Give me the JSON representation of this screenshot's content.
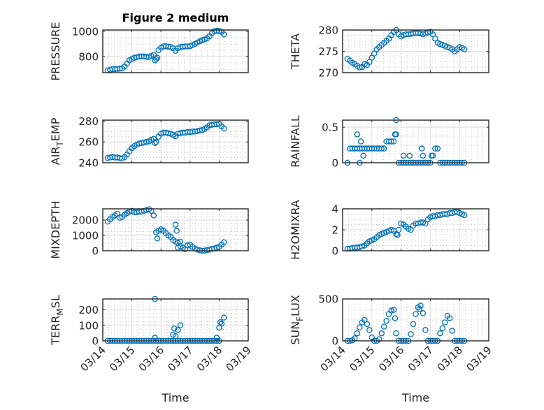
{
  "chart_data": {
    "type": "scatter",
    "figure_title": "Figure 2 medium",
    "xlabel": "Time",
    "xticklabels": [
      "03/14",
      "03/15",
      "03/16",
      "03/17",
      "03/18",
      "03/19"
    ],
    "xlim_days_since_0314": [
      0,
      5
    ],
    "marker": "open-circle",
    "color": "#0072BD",
    "grid": "on-with-minor",
    "x_hours_since_0314": [
      4,
      6,
      8,
      10,
      12,
      14,
      16,
      18,
      20,
      22,
      24,
      26,
      28,
      30,
      32,
      34,
      36,
      38,
      40,
      42,
      44,
      46,
      48,
      50,
      52,
      54,
      56,
      58,
      60,
      62,
      64,
      66,
      68,
      70,
      72,
      74,
      76,
      78,
      80,
      82,
      84,
      86,
      88,
      90,
      92,
      94,
      96,
      98,
      100
    ],
    "subplots": [
      {
        "name": "PRESSURE",
        "ylabel": {
          "base": "PRESSURE",
          "sub": "",
          "rest": ""
        },
        "ylim": [
          672,
          1010
        ],
        "yticks": [
          800,
          1000
        ],
        "y": [
          690,
          695,
          700,
          700,
          702,
          703,
          705,
          720,
          745,
          770,
          780,
          790,
          795,
          800,
          800,
          800,
          798,
          795,
          805,
          815,
          780,
          850,
          870,
          880,
          882,
          878,
          875,
          865,
          845,
          865,
          875,
          878,
          880,
          880,
          882,
          890,
          900,
          910,
          920,
          930,
          935,
          945,
          960,
          985,
          1000,
          1003,
          1003,
          995,
          975
        ],
        "outliers": [
          [
            43,
            770
          ],
          [
            45,
            790
          ]
        ]
      },
      {
        "name": "THETA",
        "ylabel": {
          "base": "THETA",
          "sub": "",
          "rest": ""
        },
        "ylim": [
          270,
          280
        ],
        "yticks": [
          270,
          275,
          280
        ],
        "y": [
          273.2,
          272.8,
          272.3,
          272,
          271.6,
          271.2,
          271.3,
          272,
          271.8,
          272.5,
          273.5,
          274.5,
          275.5,
          276,
          276.5,
          277,
          277.5,
          278,
          278.8,
          279.5,
          280,
          279,
          278.5,
          278.8,
          279,
          279,
          279.1,
          279.2,
          279.3,
          279.3,
          279.2,
          279,
          279.2,
          279.4,
          279.6,
          279,
          278,
          277,
          276.7,
          276.5,
          276.3,
          276,
          275.8,
          275.5,
          275,
          275.5,
          276,
          275.8,
          275.5
        ],
        "outliers": []
      },
      {
        "name": "AIR_TEMP",
        "ylabel": {
          "base": "AIR",
          "sub": "T",
          "rest": "EMP"
        },
        "ylim": [
          240,
          281
        ],
        "yticks": [
          240,
          260,
          280
        ],
        "y": [
          244.5,
          245,
          245.5,
          245,
          245,
          244.5,
          244,
          245.5,
          248,
          251,
          254,
          256,
          257.5,
          258.5,
          259,
          259.5,
          260,
          260.5,
          262,
          263,
          260,
          265,
          268,
          269,
          269,
          268.5,
          268,
          267,
          265.5,
          268,
          268.5,
          269,
          269,
          269.5,
          269.5,
          270,
          270,
          270.5,
          271,
          271.5,
          272.5,
          274,
          276,
          276.5,
          277,
          277,
          277.5,
          275,
          273
        ],
        "outliers": [
          [
            43,
            259
          ]
        ]
      },
      {
        "name": "RAINFALL",
        "ylabel": {
          "base": "RAINFALL",
          "sub": "",
          "rest": ""
        },
        "ylim": [
          0,
          0.6
        ],
        "yticks": [
          0,
          0.5
        ],
        "y": [
          0,
          0.2,
          0.2,
          0.2,
          0.2,
          0.2,
          0.2,
          0.2,
          0.2,
          0.2,
          0.2,
          0.2,
          0.2,
          0.2,
          0.2,
          0.2,
          0.3,
          0.3,
          0.3,
          0.3,
          0.4,
          0,
          0,
          0,
          0,
          0,
          0,
          0,
          0,
          0,
          0,
          0,
          0,
          0,
          0,
          0.1,
          0.2,
          0.2,
          0,
          0,
          0,
          0,
          0,
          0,
          0,
          0,
          0,
          0,
          0
        ],
        "outliers": [
          [
            12,
            0.4
          ],
          [
            14,
            0
          ],
          [
            15,
            0.3
          ],
          [
            17,
            0.1
          ],
          [
            43,
            0.4
          ],
          [
            44,
            0.6
          ],
          [
            50,
            0.1
          ],
          [
            55,
            0.1
          ],
          [
            65,
            0.2
          ],
          [
            66,
            0.1
          ],
          [
            73,
            0.1
          ]
        ]
      },
      {
        "name": "MIXDEPTH",
        "ylabel": {
          "base": "MIXDEPTH",
          "sub": "",
          "rest": ""
        },
        "ylim": [
          0,
          2730
        ],
        "yticks": [
          0,
          1000,
          2000
        ],
        "y": [
          1900,
          2050,
          2200,
          2300,
          2400,
          2150,
          2200,
          2350,
          2450,
          2550,
          2600,
          2500,
          2500,
          2550,
          2550,
          2600,
          2650,
          2700,
          2600,
          2300,
          1200,
          1300,
          1400,
          1300,
          1150,
          1000,
          900,
          700,
          600,
          500,
          300,
          200,
          100,
          350,
          400,
          250,
          150,
          80,
          30,
          0,
          10,
          40,
          80,
          120,
          150,
          200,
          250,
          400,
          550
        ],
        "outliers": [
          [
            45,
            800
          ],
          [
            60,
            1700
          ],
          [
            61,
            1300
          ],
          [
            62,
            200
          ],
          [
            64,
            600
          ]
        ]
      },
      {
        "name": "H2OMIXRA",
        "ylabel": {
          "base": "H2OMIXRA",
          "sub": "",
          "rest": ""
        },
        "ylim": [
          0,
          4
        ],
        "yticks": [
          0,
          2,
          4
        ],
        "y": [
          0.2,
          0.2,
          0.25,
          0.3,
          0.3,
          0.35,
          0.4,
          0.5,
          0.7,
          0.9,
          1.0,
          1.1,
          1.3,
          1.5,
          1.6,
          1.7,
          1.8,
          1.9,
          2.0,
          1.9,
          1.6,
          2.0,
          2.6,
          2.5,
          2.3,
          2.1,
          2.0,
          2.4,
          2.6,
          2.6,
          2.7,
          2.7,
          2.6,
          3.0,
          3.2,
          3.3,
          3.3,
          3.4,
          3.4,
          3.5,
          3.5,
          3.5,
          3.6,
          3.6,
          3.7,
          3.7,
          3.6,
          3.5,
          3.4
        ],
        "outliers": [
          [
            45,
            1.5
          ]
        ]
      },
      {
        "name": "TERR_MSL",
        "ylabel": {
          "base": "TERR",
          "sub": "M",
          "rest": "SL"
        },
        "ylim": [
          0,
          270
        ],
        "yticks": [
          0,
          100,
          200
        ],
        "y": [
          0,
          0,
          0,
          0,
          0,
          0,
          0,
          0,
          0,
          0,
          0,
          0,
          0,
          0,
          0,
          0,
          0,
          0,
          0,
          0,
          0,
          0,
          0,
          0,
          0,
          0,
          0,
          0,
          0,
          0,
          0,
          0,
          0,
          0,
          0,
          0,
          0,
          0,
          0,
          0,
          0,
          0,
          0,
          0,
          0,
          0,
          0,
          110,
          150
        ],
        "outliers": [
          [
            43,
            270
          ],
          [
            43,
            20
          ],
          [
            58,
            40
          ],
          [
            59,
            80
          ],
          [
            60,
            30
          ],
          [
            62,
            70
          ],
          [
            64,
            100
          ],
          [
            94,
            20
          ],
          [
            96,
            85
          ],
          [
            97,
            120
          ]
        ]
      },
      {
        "name": "SUN_FLUX",
        "ylabel": {
          "base": "SUN",
          "sub": "F",
          "rest": "LUX"
        },
        "ylim": [
          0,
          500
        ],
        "yticks": [
          0,
          500
        ],
        "y": [
          0,
          0,
          5,
          30,
          90,
          160,
          220,
          250,
          200,
          130,
          40,
          0,
          0,
          20,
          90,
          170,
          240,
          320,
          360,
          370,
          90,
          0,
          0,
          0,
          0,
          0,
          80,
          200,
          320,
          400,
          420,
          330,
          130,
          0,
          0,
          0,
          0,
          0,
          90,
          150,
          220,
          300,
          270,
          120,
          0,
          0,
          0,
          0,
          0
        ],
        "outliers": [
          [
            43,
            270
          ],
          [
            63,
            380
          ]
        ]
      }
    ]
  }
}
